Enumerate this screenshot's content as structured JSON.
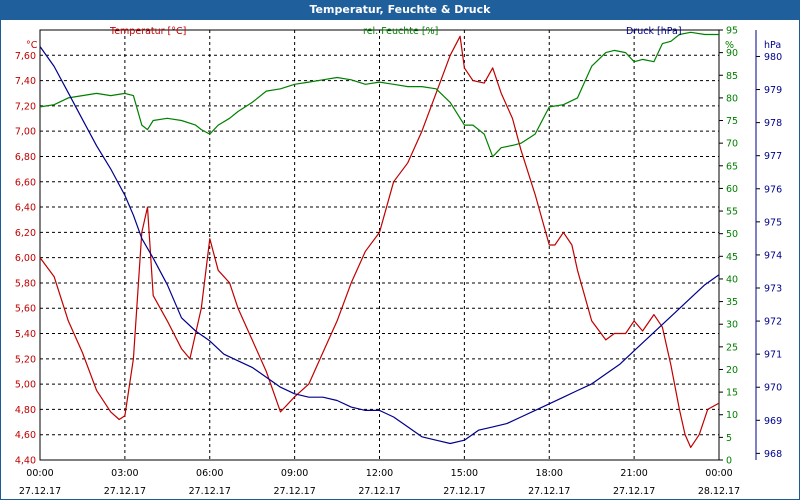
{
  "window": {
    "title": "Temperatur, Feuchte & Druck"
  },
  "colors": {
    "temperature": "#c00000",
    "humidity": "#008000",
    "pressure": "#00008c",
    "title_bar": "#1e5f9c"
  },
  "chart_data": {
    "type": "line",
    "title": "Temperatur, Feuchte & Druck",
    "grid": true,
    "x_ticks": [
      {
        "time": "00:00",
        "date": "27.12.17"
      },
      {
        "time": "03:00",
        "date": "27.12.17"
      },
      {
        "time": "06:00",
        "date": "27.12.17"
      },
      {
        "time": "09:00",
        "date": "27.12.17"
      },
      {
        "time": "12:00",
        "date": "27.12.17"
      },
      {
        "time": "15:00",
        "date": "27.12.17"
      },
      {
        "time": "18:00",
        "date": "27.12.17"
      },
      {
        "time": "21:00",
        "date": "27.12.17"
      },
      {
        "time": "00:00",
        "date": "28.12.17"
      }
    ],
    "axes": {
      "temperature": {
        "label": "Temperatur [°C]",
        "unit": "°C",
        "min": 4.4,
        "max": 7.8,
        "ticks": [
          "4,40",
          "4,60",
          "4,80",
          "5,00",
          "5,20",
          "5,40",
          "5,60",
          "5,80",
          "6,00",
          "6,20",
          "6,40",
          "6,60",
          "6,80",
          "7,00",
          "7,20",
          "7,40",
          "7,60"
        ]
      },
      "humidity": {
        "label": "rel. Feuchte [%]",
        "unit": "%",
        "min": 0,
        "max": 95,
        "ticks": [
          "0",
          "5",
          "10",
          "15",
          "20",
          "25",
          "30",
          "35",
          "40",
          "45",
          "50",
          "55",
          "60",
          "65",
          "70",
          "75",
          "80",
          "85",
          "90",
          "95"
        ]
      },
      "pressure": {
        "label": "Druck [hPa]",
        "unit": "hPa",
        "min": 967.8,
        "max": 980.8,
        "ticks": [
          "968",
          "969",
          "970",
          "971",
          "972",
          "973",
          "974",
          "975",
          "976",
          "977",
          "978",
          "979",
          "980"
        ]
      }
    },
    "series": [
      {
        "name": "Temperatur [°C]",
        "axis": "temperature",
        "x": [
          0,
          0.5,
          1,
          1.5,
          2,
          2.5,
          2.8,
          3,
          3.3,
          3.6,
          3.8,
          4,
          4.5,
          5,
          5.3,
          5.7,
          6,
          6.3,
          6.7,
          7,
          7.5,
          8,
          8.5,
          9,
          9.5,
          10,
          10.5,
          11,
          11.5,
          12,
          12.5,
          13,
          13.5,
          14,
          14.5,
          14.85,
          15,
          15.3,
          15.7,
          16,
          16.3,
          16.7,
          17,
          17.5,
          18,
          18.2,
          18.5,
          18.8,
          19,
          19.5,
          20,
          20.3,
          20.7,
          21,
          21.3,
          21.7,
          22,
          22.3,
          22.6,
          22.8,
          23,
          23.3,
          23.6,
          24
        ],
        "values": [
          6.0,
          5.85,
          5.5,
          5.25,
          4.95,
          4.78,
          4.72,
          4.75,
          5.2,
          6.2,
          6.4,
          5.7,
          5.5,
          5.28,
          5.2,
          5.6,
          6.15,
          5.9,
          5.8,
          5.6,
          5.35,
          5.1,
          4.78,
          4.9,
          5.0,
          5.25,
          5.5,
          5.8,
          6.05,
          6.2,
          6.6,
          6.75,
          7.0,
          7.3,
          7.6,
          7.75,
          7.5,
          7.4,
          7.38,
          7.5,
          7.3,
          7.1,
          6.85,
          6.5,
          6.1,
          6.1,
          6.2,
          6.1,
          5.9,
          5.5,
          5.35,
          5.4,
          5.4,
          5.5,
          5.42,
          5.55,
          5.45,
          5.15,
          4.8,
          4.6,
          4.5,
          4.6,
          4.8,
          4.85
        ]
      },
      {
        "name": "rel. Feuchte [%]",
        "axis": "humidity",
        "x": [
          0,
          0.5,
          1,
          1.5,
          2,
          2.5,
          3,
          3.3,
          3.6,
          3.8,
          4,
          4.5,
          5,
          5.5,
          5.7,
          6,
          6.3,
          6.7,
          7,
          7.5,
          8,
          8.5,
          9,
          9.5,
          10,
          10.5,
          11,
          11.5,
          12,
          12.5,
          13,
          13.5,
          14,
          14.5,
          15,
          15.3,
          15.7,
          16,
          16.3,
          16.7,
          17,
          17.5,
          18,
          18.5,
          19,
          19.5,
          20,
          20.3,
          20.7,
          21,
          21.3,
          21.7,
          22,
          22.3,
          22.6,
          23,
          23.5,
          24
        ],
        "values": [
          78,
          78.5,
          80,
          80.5,
          81,
          80.5,
          81,
          80.5,
          74,
          73,
          75,
          75.5,
          75,
          74,
          73,
          72,
          74,
          75.5,
          77,
          79,
          81.5,
          82,
          83,
          83.5,
          84,
          84.5,
          84,
          83,
          83.5,
          83,
          82.5,
          82.5,
          82,
          79,
          74,
          74,
          72,
          67,
          69,
          69.5,
          70,
          72,
          78,
          78.5,
          80,
          87,
          90,
          90.5,
          90,
          88,
          88.5,
          88,
          92,
          92.5,
          94,
          94.5,
          94,
          94
        ]
      },
      {
        "name": "Druck [hPa]",
        "axis": "pressure",
        "x": [
          0,
          0.5,
          1,
          1.5,
          2,
          2.5,
          3,
          3.3,
          3.6,
          4,
          4.5,
          5,
          5.5,
          6,
          6.5,
          7,
          7.5,
          8,
          8.5,
          9,
          9.5,
          10,
          10.5,
          11,
          11.5,
          12,
          12.5,
          13,
          13.5,
          14,
          14.5,
          15,
          15.5,
          16,
          16.5,
          17,
          17.5,
          18,
          18.5,
          19,
          19.5,
          20,
          20.5,
          21,
          21.5,
          22,
          22.5,
          23,
          23.5,
          24
        ],
        "values": [
          980.3,
          979.7,
          978.9,
          978.1,
          977.3,
          976.6,
          975.8,
          975.2,
          974.5,
          973.9,
          973.1,
          972.1,
          971.7,
          971.4,
          971.0,
          970.8,
          970.6,
          970.3,
          970.0,
          969.8,
          969.7,
          969.7,
          969.6,
          969.4,
          969.3,
          969.3,
          969.1,
          968.8,
          968.5,
          968.4,
          968.3,
          968.4,
          968.7,
          968.8,
          968.9,
          969.1,
          969.3,
          969.5,
          969.7,
          969.9,
          970.1,
          970.4,
          970.7,
          971.1,
          971.5,
          971.9,
          972.3,
          972.7,
          973.1,
          973.4
        ]
      }
    ]
  }
}
